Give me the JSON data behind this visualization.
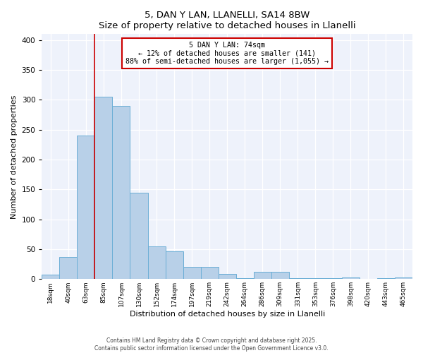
{
  "title": "5, DAN Y LAN, LLANELLI, SA14 8BW",
  "subtitle": "Size of property relative to detached houses in Llanelli",
  "xlabel": "Distribution of detached houses by size in Llanelli",
  "ylabel": "Number of detached properties",
  "bar_labels": [
    "18sqm",
    "40sqm",
    "63sqm",
    "85sqm",
    "107sqm",
    "130sqm",
    "152sqm",
    "174sqm",
    "197sqm",
    "219sqm",
    "242sqm",
    "264sqm",
    "286sqm",
    "309sqm",
    "331sqm",
    "353sqm",
    "376sqm",
    "398sqm",
    "420sqm",
    "443sqm",
    "465sqm"
  ],
  "bar_values": [
    7,
    37,
    240,
    305,
    290,
    145,
    55,
    46,
    20,
    20,
    9,
    2,
    12,
    12,
    2,
    2,
    2,
    3,
    0,
    2,
    3
  ],
  "bar_color": "#b8d0e8",
  "bar_edge_color": "#6baed6",
  "vline_color": "#cc0000",
  "annotation_title": "5 DAN Y LAN: 74sqm",
  "annotation_line2": "← 12% of detached houses are smaller (141)",
  "annotation_line3": "88% of semi-detached houses are larger (1,055) →",
  "annotation_box_color": "#cc0000",
  "ylim": [
    0,
    410
  ],
  "yticks": [
    0,
    50,
    100,
    150,
    200,
    250,
    300,
    350,
    400
  ],
  "bg_color": "#eef2fb",
  "footer1": "Contains HM Land Registry data © Crown copyright and database right 2025.",
  "footer2": "Contains public sector information licensed under the Open Government Licence v3.0."
}
